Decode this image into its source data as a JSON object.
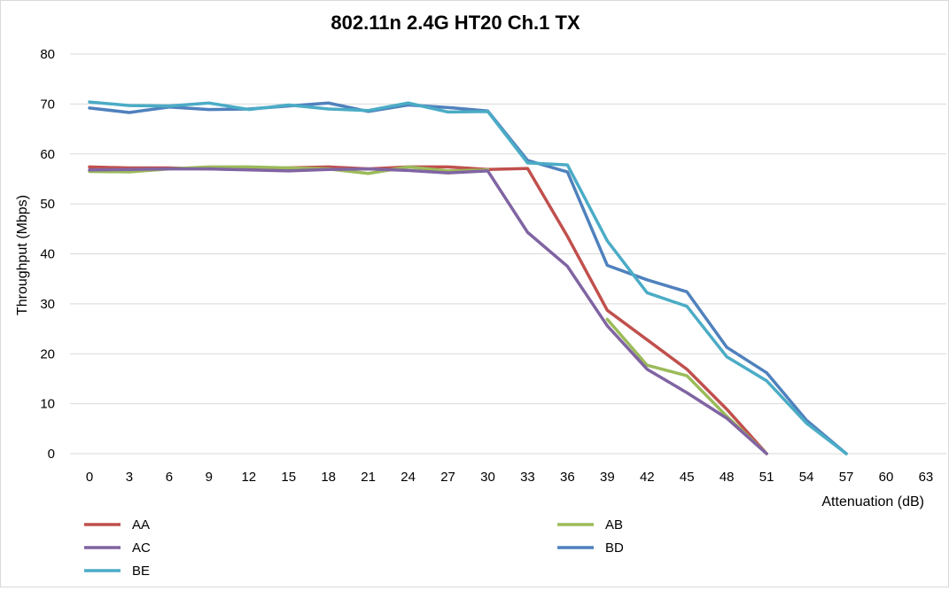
{
  "chart_data": {
    "type": "line",
    "title": "802.11n 2.4G HT20 Ch.1 TX",
    "xlabel": "Attenuation (dB)",
    "ylabel": "Throughput (Mbps)",
    "x": [
      0,
      3,
      6,
      9,
      12,
      15,
      18,
      21,
      24,
      27,
      30,
      33,
      36,
      39,
      42,
      45,
      48,
      51,
      54,
      57,
      60,
      63
    ],
    "x_tick_labels": [
      "0",
      "3",
      "6",
      "9",
      "12",
      "15",
      "18",
      "21",
      "24",
      "27",
      "30",
      "33",
      "36",
      "39",
      "42",
      "45",
      "48",
      "51",
      "54",
      "57",
      "60",
      "63"
    ],
    "ylim": [
      0,
      80
    ],
    "y_ticks": [
      0,
      10,
      20,
      30,
      40,
      50,
      60,
      70,
      80
    ],
    "grid": "horizontal",
    "legend_position": "bottom",
    "series": [
      {
        "name": "AA",
        "color": "#c0504d",
        "values": [
          57.4,
          57.2,
          57.2,
          57.0,
          56.9,
          57.2,
          57.4,
          57.0,
          57.4,
          57.4,
          56.9,
          57.1,
          43.5,
          28.7,
          22.8,
          16.9,
          8.9,
          0,
          null,
          null,
          null,
          null
        ]
      },
      {
        "name": "AB",
        "color": "#9bbb59",
        "values": [
          56.5,
          56.4,
          57.0,
          57.4,
          57.4,
          57.2,
          57.0,
          56.1,
          57.4,
          56.6,
          56.8,
          null,
          null,
          26.9,
          17.7,
          15.6,
          7.5,
          0,
          null,
          null,
          null,
          null
        ]
      },
      {
        "name": "AC",
        "color": "#8064a2",
        "values": [
          56.8,
          56.9,
          57.0,
          57.0,
          56.8,
          56.6,
          56.9,
          57.0,
          56.7,
          56.2,
          56.6,
          44.3,
          37.5,
          25.6,
          16.9,
          12.2,
          7.1,
          0,
          null,
          null,
          null,
          null
        ]
      },
      {
        "name": "BD",
        "color": "#4f81bd",
        "values": [
          69.2,
          68.3,
          69.4,
          68.9,
          69.0,
          69.6,
          70.2,
          68.5,
          69.8,
          69.3,
          68.6,
          58.7,
          56.4,
          37.7,
          34.8,
          32.4,
          21.3,
          16.2,
          6.7,
          0,
          null,
          null
        ]
      },
      {
        "name": "BE",
        "color": "#4bacc6",
        "values": [
          70.4,
          69.7,
          69.6,
          70.2,
          68.9,
          69.8,
          69.0,
          68.7,
          70.2,
          68.4,
          68.5,
          58.2,
          57.8,
          42.6,
          32.2,
          29.5,
          19.4,
          14.6,
          6.1,
          0,
          null,
          null
        ]
      }
    ]
  }
}
